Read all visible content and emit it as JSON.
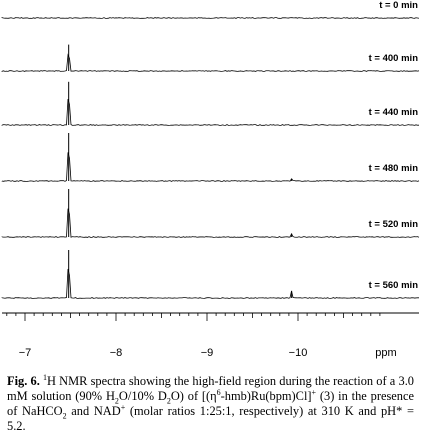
{
  "chart_data": {
    "type": "line",
    "x_unit": "ppm",
    "x_ticks": [
      "−7",
      "−8",
      "−9",
      "−10"
    ],
    "x_ppm": [
      -7,
      -8,
      -9,
      -10
    ],
    "spectra": [
      {
        "label": "t = 0 min",
        "peaks": []
      },
      {
        "label": "t = 400 min",
        "peaks": [
          {
            "ppm": -7.48,
            "height": 0.55
          }
        ]
      },
      {
        "label": "t = 440 min",
        "peaks": [
          {
            "ppm": -7.48,
            "height": 0.9
          }
        ]
      },
      {
        "label": "t = 480 min",
        "peaks": [
          {
            "ppm": -7.48,
            "height": 1.0
          },
          {
            "ppm": -9.93,
            "height": 0.05
          }
        ]
      },
      {
        "label": "t = 520 min",
        "peaks": [
          {
            "ppm": -7.48,
            "height": 1.0
          },
          {
            "ppm": -9.93,
            "height": 0.07
          }
        ]
      },
      {
        "label": "t = 560 min",
        "peaks": [
          {
            "ppm": -7.48,
            "height": 1.0
          },
          {
            "ppm": -9.93,
            "height": 0.15
          }
        ]
      }
    ]
  },
  "caption": {
    "fig_label": "Fig. 6.",
    "text_a": "H NMR spectra showing the high-field region during the reaction of a 3.0 mM solution (90% H",
    "text_b": "O/10% D",
    "text_c": "O) of [(η",
    "text_d": "-hmb)Ru(bpm)Cl]",
    "text_e": " (3) in the presence of NaHCO",
    "text_f": " and NAD",
    "text_g": " (molar ratios 1:25:1, respectively) at 310 K and pH* = 5.2.",
    "sup_1": "1",
    "sub_2": "2",
    "sup_6": "6",
    "sup_plus": "+"
  }
}
